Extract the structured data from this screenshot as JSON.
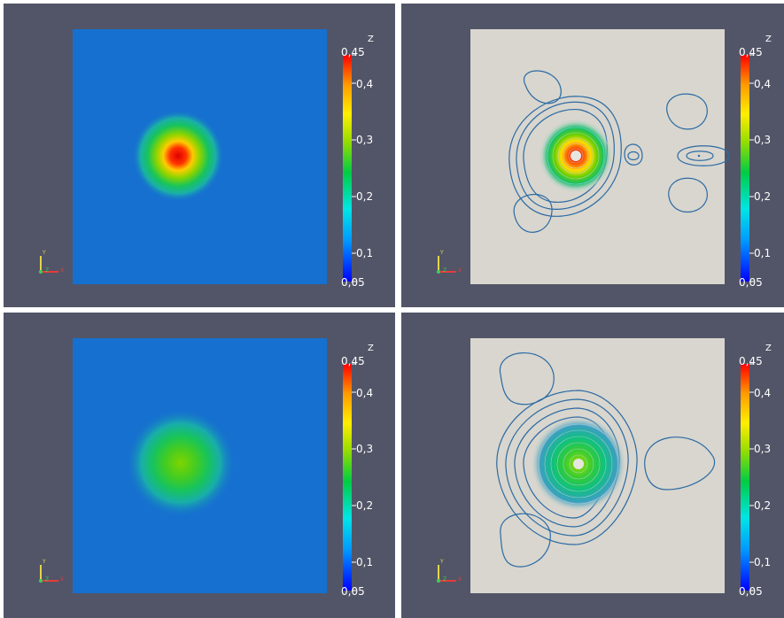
{
  "colorbar": {
    "title": "Z",
    "range": [
      0.05,
      0.45
    ],
    "max_label": "0,45",
    "min_label": "0,05",
    "tick_labels": [
      "0,4",
      "0,3",
      "0,2",
      "0,1"
    ],
    "tick_values": [
      0.4,
      0.3,
      0.2,
      0.1
    ]
  },
  "axes_triad": {
    "x": "X",
    "y": "Y",
    "z": "Z",
    "x_color": "#e83a3a",
    "y_color": "#e0d44a",
    "z_color": "#3ad15a"
  },
  "colors": {
    "background": "#525567",
    "field_base": "#1670cf",
    "contour_line": "#2c6aa4",
    "contour_background": "#d8d6ce",
    "colormap": [
      "#0000ff",
      "#0099ff",
      "#00e5e5",
      "#00cc44",
      "#99dd00",
      "#ffee00",
      "#ff9900",
      "#ff0000"
    ]
  },
  "views": [
    {
      "name": "top-left",
      "kind": "surface",
      "peak_value": 0.45
    },
    {
      "name": "top-right",
      "kind": "contour",
      "peak_value": 0.45
    },
    {
      "name": "bottom-left",
      "kind": "surface",
      "peak_value": 0.28
    },
    {
      "name": "bottom-right",
      "kind": "contour",
      "peak_value": 0.28
    }
  ]
}
